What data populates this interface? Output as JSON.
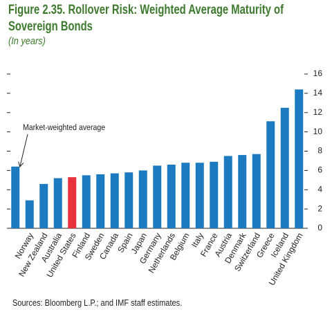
{
  "chart_data": {
    "type": "bar",
    "title": "Figure 2.35. Rollover Risk: Weighted Average Maturity of Sovereign Bonds",
    "subtitle": "(In years)",
    "source": "Sources: Bloomberg L.P.; and IMF staff estimates.",
    "annotation": "Market-weighted average",
    "categories": [
      null,
      "Norway",
      "New Zealand",
      "Australia",
      "United States",
      "Finland",
      "Sweden",
      "Canada",
      "Spain",
      "Japan",
      "Germany",
      "Netherlands",
      "Belgium",
      "Italy",
      "France",
      "Austria",
      "Denmark",
      "Switzerland",
      "Greece",
      "Iceland",
      "United Kingdom"
    ],
    "values": [
      6.4,
      2.9,
      4.6,
      5.2,
      5.3,
      5.5,
      5.6,
      5.7,
      5.8,
      6.0,
      6.5,
      6.6,
      6.8,
      6.8,
      6.9,
      7.5,
      7.6,
      7.7,
      11.1,
      12.5,
      14.4
    ],
    "colors": [
      "#1b7ac0",
      "#1b7ac0",
      "#1b7ac0",
      "#1b7ac0",
      "#e8313c",
      "#1b7ac0",
      "#1b7ac0",
      "#1b7ac0",
      "#1b7ac0",
      "#1b7ac0",
      "#1b7ac0",
      "#1b7ac0",
      "#1b7ac0",
      "#1b7ac0",
      "#1b7ac0",
      "#1b7ac0",
      "#1b7ac0",
      "#1b7ac0",
      "#1b7ac0",
      "#1b7ac0",
      "#1b7ac0"
    ],
    "ylim": [
      0,
      16
    ],
    "yticks": [
      0,
      2,
      4,
      6,
      8,
      10,
      12,
      14,
      16
    ]
  }
}
